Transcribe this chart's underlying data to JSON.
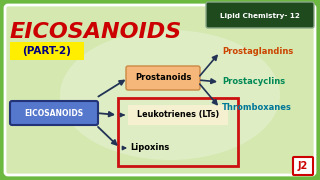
{
  "bg_color": "#6cb840",
  "inner_bg_color": "#d4e8b0",
  "title": "EICOSANOIDS",
  "subtitle": "(PART-2)",
  "title_color": "#cc0000",
  "subtitle_bg": "#ffee00",
  "subtitle_text_color": "#000080",
  "header_box_color": "#1e4a1e",
  "header_text": "Lipid Chemistry- 12",
  "header_text_color": "#ffffff",
  "eicosanoids_box_color": "#5577cc",
  "eicosanoids_text": "EICOSANOIDS",
  "eicosanoids_text_color": "#ffffff",
  "prostanoids_box_color": "#f5b87a",
  "prostanoids_text": "Prostanoids",
  "leukotrienes_text": "Leukotrienes (LTs)",
  "lipoxins_text": "Lipoxins",
  "red_box_color": "#cc1111",
  "leukobox_color": "#f5f0d0",
  "prostaglandins_text": "Prostaglandins",
  "prostaglandins_color": "#cc4400",
  "prostacyclins_text": "Prostacyclins",
  "prostacyclins_color": "#008855",
  "thromboxanes_text": "Thromboxanes",
  "thromboxanes_color": "#007799",
  "arrow_color": "#223355",
  "logo_text": "J2",
  "logo_color": "#cc0000",
  "logo_bg": "#ffffff"
}
